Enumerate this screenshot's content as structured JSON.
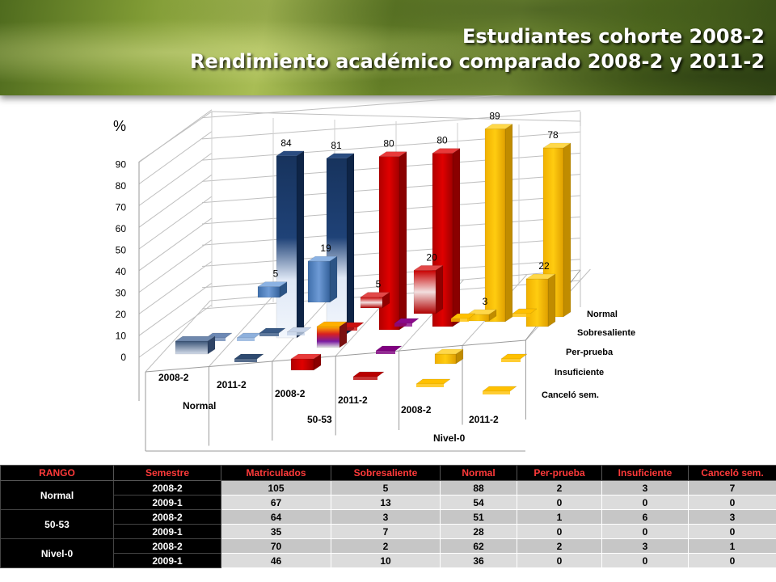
{
  "header": {
    "title_line1": "Estudiantes cohorte 2008-2",
    "title_line2": "Rendimiento académico comparado 2008-2 y 2011-2"
  },
  "chart_data": {
    "type": "bar",
    "variant": "3d-column",
    "y_unit_label": "%",
    "ylim": [
      0,
      90
    ],
    "yticks": [
      "0",
      "10",
      "20",
      "30",
      "40",
      "50",
      "60",
      "70",
      "80",
      "90"
    ],
    "grid": true,
    "categories": [
      "2008-2",
      "2011-2",
      "2008-2",
      "2011-2",
      "2008-2",
      "2011-2"
    ],
    "groups": [
      {
        "label": "Normal",
        "categories": [
          "2008-2",
          "2011-2"
        ]
      },
      {
        "label": "50-53",
        "categories": [
          "2008-2",
          "2011-2"
        ]
      },
      {
        "label": "Nivel-0",
        "categories": [
          "2008-2",
          "2011-2"
        ]
      }
    ],
    "series": [
      {
        "name": "Normal",
        "values": [
          84,
          81,
          80,
          80,
          89,
          78
        ],
        "data_labels": [
          "84",
          "81",
          "80",
          "80",
          "89",
          "78"
        ]
      },
      {
        "name": "Sobresaliente",
        "values": [
          5,
          19,
          5,
          20,
          3,
          22
        ],
        "data_labels": [
          "5",
          "19",
          "5",
          "20",
          "3",
          "22"
        ]
      },
      {
        "name": "Per-prueba",
        "values": [
          2,
          0,
          2,
          0,
          3,
          0
        ]
      },
      {
        "name": "Insuficiente",
        "values": [
          3,
          0,
          9,
          0,
          4,
          0
        ]
      },
      {
        "name": "Canceló sem.",
        "values": [
          7,
          0,
          5,
          0,
          1,
          0
        ]
      }
    ],
    "colors": {
      "Normal": [
        "#1c3a66",
        "#c80000",
        "#ffc000"
      ],
      "Sobresaliente": [
        "#4f81bd",
        "#d42020",
        "#ffc000"
      ]
    }
  },
  "table": {
    "headers": [
      "RANGO",
      "Semestre",
      "Matriculados",
      "Sobresaliente",
      "Normal",
      "Per-prueba",
      "Insuficiente",
      "Canceló sem."
    ],
    "groups": [
      {
        "rango": "Normal",
        "rows": [
          {
            "semestre": "2008-2",
            "values": [
              "105",
              "5",
              "88",
              "2",
              "3",
              "7"
            ]
          },
          {
            "semestre": "2009-1",
            "values": [
              "67",
              "13",
              "54",
              "0",
              "0",
              "0"
            ]
          }
        ]
      },
      {
        "rango": "50-53",
        "rows": [
          {
            "semestre": "2008-2",
            "values": [
              "64",
              "3",
              "51",
              "1",
              "6",
              "3"
            ]
          },
          {
            "semestre": "2009-1",
            "values": [
              "35",
              "7",
              "28",
              "0",
              "0",
              "0"
            ]
          }
        ]
      },
      {
        "rango": "Nivel-0",
        "rows": [
          {
            "semestre": "2008-2",
            "values": [
              "70",
              "2",
              "62",
              "2",
              "3",
              "1"
            ]
          },
          {
            "semestre": "2009-1",
            "values": [
              "46",
              "10",
              "36",
              "0",
              "0",
              "0"
            ]
          }
        ]
      }
    ]
  }
}
